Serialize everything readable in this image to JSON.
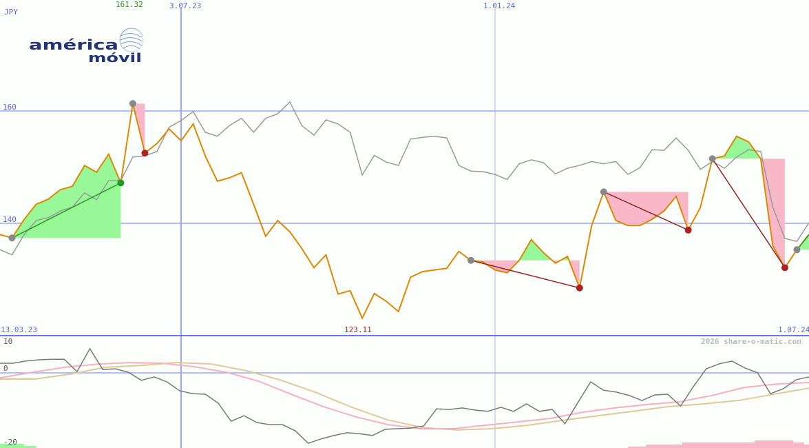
{
  "currency": "JPY",
  "logo_text": "américa móvil",
  "watermark": "2026 share-o-matic.com",
  "colors": {
    "price": "#dd8800",
    "compare": "#999999",
    "grid": "#9aa8f0",
    "axis": "#6677ee",
    "up_fill": "#98f898",
    "down_fill": "#f8b8c8",
    "marker": "#888888",
    "up_marker": "#229922",
    "down_marker": "#aa2222",
    "trend_down": "#992222",
    "trend_up": "#229922",
    "osc": "#777777",
    "ma_fast": "#f8b0c0",
    "ma_slow": "#e0c898"
  },
  "chart_data": [
    {
      "type": "line",
      "title": "",
      "ylim": [
        120,
        170
      ],
      "grid": true,
      "y_ticks": [
        "160",
        "140"
      ],
      "y_tick_values": [
        160,
        140
      ],
      "x_labels": {
        "start": "13.03.23",
        "mid1": "3.07.23",
        "mid2": "1.01.24",
        "end": "1.07.24"
      },
      "max_label": "161.32",
      "min_label": "123.11",
      "series": [
        {
          "role": "price",
          "values": [
            138.0,
            137.4,
            140.7,
            143.4,
            144.3,
            146.0,
            146.6,
            150.3,
            149.1,
            152.3,
            147.2,
            161.32,
            152.5,
            154.2,
            156.8,
            154.7,
            157.7,
            152.0,
            147.5,
            148.1,
            149.0,
            143.4,
            137.7,
            140.5,
            138.5,
            135.5,
            132.1,
            134.4,
            127.4,
            128.0,
            123.11,
            127.5,
            126.1,
            124.3,
            130.4,
            131.4,
            131.7,
            132.0,
            135.0,
            133.4,
            133.1,
            131.7,
            131.2,
            133.4,
            137.1,
            134.8,
            132.9,
            134.1,
            128.5,
            139.6,
            145.6,
            140.5,
            139.6,
            139.6,
            140.7,
            142.2,
            144.8,
            138.8,
            142.8,
            151.5,
            152.0,
            155.5,
            154.5,
            151.5,
            136.0,
            132.1,
            135.3,
            138.0
          ]
        },
        {
          "role": "compare",
          "values": [
            135.3,
            134.4,
            138.0,
            140.5,
            141.0,
            142.2,
            142.9,
            145.4,
            144.2,
            147.6,
            147.6,
            151.8,
            152.0,
            152.8,
            157.1,
            158.3,
            159.9,
            156.2,
            155.5,
            157.4,
            158.7,
            156.2,
            158.7,
            159.5,
            161.6,
            157.4,
            155.7,
            158.4,
            157.7,
            156.2,
            148.6,
            152.1,
            150.9,
            150.3,
            155.0,
            155.3,
            155.5,
            155.2,
            150.3,
            149.3,
            149.2,
            148.7,
            147.8,
            150.6,
            151.3,
            150.8,
            148.8,
            149.8,
            150.3,
            151.0,
            150.6,
            151.0,
            148.7,
            149.9,
            153.1,
            153.0,
            155.2,
            153.0,
            149.6,
            151.0,
            149.8,
            151.8,
            153.1,
            152.8,
            142.9,
            137.3,
            136.8,
            140.1
          ]
        }
      ],
      "pivots": [
        {
          "index": 1,
          "kind": "neutral"
        },
        {
          "index": 10,
          "kind": "up"
        },
        {
          "index": 11,
          "kind": "neutral"
        },
        {
          "index": 12,
          "kind": "down"
        },
        {
          "index": 39,
          "kind": "neutral"
        },
        {
          "index": 48,
          "kind": "down"
        },
        {
          "index": 50,
          "kind": "neutral"
        },
        {
          "index": 57,
          "kind": "down"
        },
        {
          "index": 59,
          "kind": "neutral"
        },
        {
          "index": 65,
          "kind": "down"
        },
        {
          "index": 66,
          "kind": "neutral"
        }
      ],
      "trends": [
        {
          "from": 1,
          "to": 10,
          "dir": "up"
        },
        {
          "from": 11,
          "to": 12,
          "dir": "none"
        },
        {
          "from": 39,
          "to": 48,
          "dir": "down"
        },
        {
          "from": 50,
          "to": 57,
          "dir": "down"
        },
        {
          "from": 59,
          "to": 65,
          "dir": "down"
        },
        {
          "from": 66,
          "to": 67,
          "dir": "up"
        }
      ]
    },
    {
      "type": "line",
      "title": "",
      "ylim": [
        -22.5,
        12
      ],
      "y_ticks": [
        "10",
        "0",
        "-20"
      ],
      "y_tick_values": [
        10,
        0,
        -20
      ],
      "series": [
        {
          "role": "oscillator",
          "values": [
            3.1,
            3.1,
            3.8,
            4.2,
            4.4,
            4.4,
            0.4,
            7.8,
            1.1,
            1.3,
            0.2,
            -2.4,
            -1.3,
            -2.9,
            -5.8,
            -6.7,
            -6.9,
            -9.8,
            -15.6,
            -13.8,
            -16.0,
            -16.7,
            -16.7,
            -18.7,
            -22.7,
            -21.3,
            -20.2,
            -19.3,
            -19.6,
            -20.2,
            -18.2,
            -18.0,
            -17.8,
            -17.1,
            -11.6,
            -11.8,
            -11.3,
            -12.0,
            -12.4,
            -11.1,
            -12.4,
            -10.0,
            -12.4,
            -11.8,
            -16.4,
            -9.6,
            -2.9,
            -5.6,
            -6.2,
            -7.3,
            -8.9,
            -7.1,
            -6.9,
            -10.7,
            -4.4,
            1.3,
            2.9,
            3.8,
            1.6,
            0,
            -6.7,
            -5.1,
            -2.2,
            -1.3
          ]
        },
        {
          "role": "ma_fast",
          "values": [
            -1.6,
            0.2,
            1.8,
            2.8,
            3.3,
            3.1,
            2.0,
            0.2,
            -2.7,
            -6.9,
            -10.9,
            -14.2,
            -16.7,
            -18.0,
            -18.0,
            -16.9,
            -15.8,
            -14.7,
            -12.7,
            -11.3,
            -10.2,
            -9.3,
            -7.3,
            -4.7,
            -3.6,
            -3.1
          ]
        },
        {
          "role": "ma_slow",
          "values": [
            -2.0,
            -2.0,
            -0.4,
            1.8,
            2.4,
            3.3,
            2.9,
            0.7,
            -2.4,
            -6.4,
            -11.1,
            -15.1,
            -17.6,
            -18.4,
            -18.0,
            -16.9,
            -15.3,
            -13.8,
            -12.4,
            -10.9,
            -10.0,
            -8.9,
            -6.9,
            -4.9
          ]
        }
      ],
      "bars": [
        {
          "from": 0,
          "to": 2,
          "value": 6,
          "dir": "up"
        },
        {
          "from": 2,
          "to": 3,
          "value": 3,
          "dir": "up"
        },
        {
          "from": 52,
          "to": 53.5,
          "value": 2,
          "dir": "down"
        },
        {
          "from": 53.5,
          "to": 56.5,
          "value": 5,
          "dir": "down"
        },
        {
          "from": 56.5,
          "to": 62.5,
          "value": 8,
          "dir": "down"
        },
        {
          "from": 62.5,
          "to": 65.7,
          "value": 11,
          "dir": "down"
        },
        {
          "from": 65.7,
          "to": 66.6,
          "value": 8,
          "dir": "down"
        },
        {
          "from": 66.6,
          "to": 68,
          "value": 5,
          "dir": "down"
        }
      ]
    }
  ]
}
